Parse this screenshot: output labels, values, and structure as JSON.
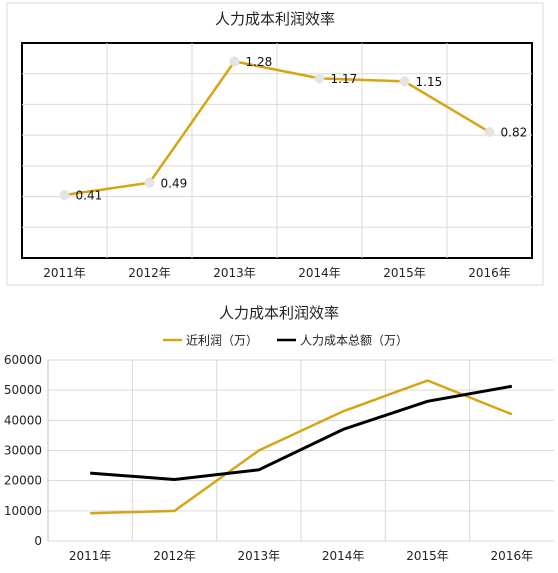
{
  "chart_data": [
    {
      "type": "line",
      "title": "人力成本利润效率",
      "categories": [
        "2011年",
        "2012年",
        "2013年",
        "2014年",
        "2015年",
        "2016年"
      ],
      "series": [
        {
          "values": [
            0.41,
            0.49,
            1.28,
            1.17,
            1.15,
            0.82
          ],
          "color": "#D6A514"
        }
      ],
      "data_labels": [
        "0.41",
        "0.49",
        "1.28",
        "1.17",
        "1.15",
        "0.82"
      ],
      "ylim": [
        0,
        1.4
      ],
      "grid": true,
      "xlabel": "",
      "ylabel": ""
    },
    {
      "type": "line",
      "title": "人力成本利润效率",
      "categories": [
        "2011年",
        "2012年",
        "2013年",
        "2014年",
        "2015年",
        "2016年"
      ],
      "series": [
        {
          "name": "近利润（万）",
          "values": [
            9200,
            10000,
            30000,
            43000,
            53200,
            42000
          ],
          "color": "#D6A514"
        },
        {
          "name": "人力成本总额（万）",
          "values": [
            22500,
            20400,
            23600,
            37000,
            46300,
            51300
          ],
          "color": "#000000"
        }
      ],
      "yticks": [
        "0",
        "10000",
        "20000",
        "30000",
        "40000",
        "50000",
        "60000"
      ],
      "ylim": [
        0,
        60000
      ],
      "grid": true,
      "legend": "top",
      "xlabel": "",
      "ylabel": ""
    }
  ]
}
